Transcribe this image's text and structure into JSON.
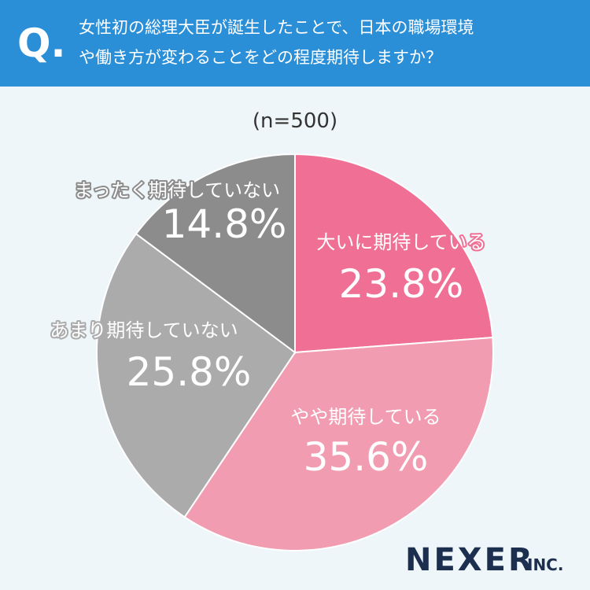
{
  "chart_data": {
    "type": "pie",
    "question_mark": "Q.",
    "title": [
      "女性初の総理大臣が誕生したことで、日本の職場環境",
      "や働き方が変わることをどの程度期待しますか？"
    ],
    "subtitle": "(n=500)",
    "categories": [
      "大いに期待している",
      "やや期待している",
      "あまり期待していない",
      "まったく期待していない"
    ],
    "values": [
      23.8,
      35.6,
      25.8,
      14.8
    ],
    "value_labels": [
      "23.8%",
      "35.6%",
      "25.8%",
      "14.8%"
    ],
    "colors": [
      "#f07095",
      "#f29cb2",
      "#ababab",
      "#8c8c8c"
    ],
    "logo": {
      "name": "NEXER",
      "suffix": "INC."
    }
  }
}
